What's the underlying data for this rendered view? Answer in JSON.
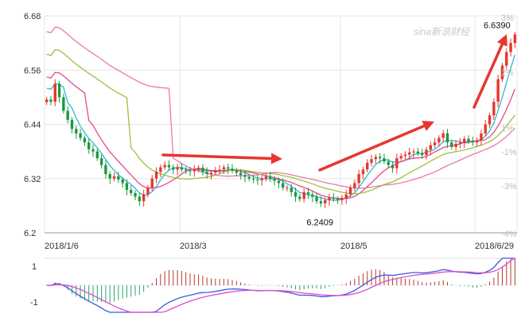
{
  "watermark": "sina新浪财经",
  "chart_data": [
    {
      "type": "candlestick",
      "title": "",
      "xlabel": "",
      "ylabel": "",
      "ylim": [
        6.2,
        6.68
      ],
      "y_ticks": [
        "6.68",
        "6.56",
        "6.44",
        "6.32",
        "6.2"
      ],
      "x_ticks": [
        "2018/1/6",
        "2018/3",
        "2018/5",
        "2018/6/29"
      ],
      "pct_ticks": [
        "3%",
        "2%",
        "1%",
        "-1%",
        "-3%",
        "-4%"
      ],
      "grid": true,
      "annotations": [
        {
          "text": "6.2409",
          "value": 6.2409,
          "kind": "low"
        },
        {
          "text": "6.6390",
          "value": 6.639,
          "kind": "high"
        }
      ],
      "close": [
        6.495,
        6.49,
        6.53,
        6.5,
        6.47,
        6.45,
        6.43,
        6.42,
        6.41,
        6.4,
        6.385,
        6.38,
        6.365,
        6.35,
        6.33,
        6.32,
        6.325,
        6.318,
        6.31,
        6.295,
        6.288,
        6.28,
        6.27,
        6.285,
        6.3,
        6.32,
        6.335,
        6.345,
        6.35,
        6.345,
        6.34,
        6.345,
        6.34,
        6.338,
        6.336,
        6.34,
        6.344,
        6.335,
        6.33,
        6.333,
        6.338,
        6.34,
        6.345,
        6.342,
        6.338,
        6.333,
        6.328,
        6.324,
        6.32,
        6.318,
        6.316,
        6.32,
        6.325,
        6.32,
        6.315,
        6.31,
        6.3,
        6.3,
        6.29,
        6.28,
        6.275,
        6.29,
        6.285,
        6.28,
        6.27,
        6.265,
        6.272,
        6.278,
        6.275,
        6.272,
        6.276,
        6.285,
        6.3,
        6.31,
        6.33,
        6.34,
        6.355,
        6.363,
        6.368,
        6.365,
        6.358,
        6.35,
        6.343,
        6.365,
        6.37,
        6.373,
        6.378,
        6.38,
        6.376,
        6.372,
        6.384,
        6.394,
        6.4,
        6.41,
        6.42,
        6.4,
        6.39,
        6.397,
        6.4,
        6.408,
        6.403,
        6.4,
        6.405,
        6.42,
        6.44,
        6.46,
        6.49,
        6.54,
        6.57,
        6.6,
        6.62,
        6.639
      ],
      "candles_up_color": "#e8352e",
      "candles_down_color": "#1a9b3c",
      "ma": [
        {
          "period": 5,
          "color": "#2eb7d6"
        },
        {
          "period": 10,
          "color": "#e74a8b"
        },
        {
          "period": 20,
          "color": "#9bc23c"
        },
        {
          "period": 30,
          "color": "#e57aa8"
        }
      ],
      "arrow_color": "#e8352e"
    },
    {
      "type": "macd",
      "ylim": [
        -1.2,
        1.2
      ],
      "y_ticks": [
        "1",
        "-1"
      ],
      "dif_color": "#3a5bd9",
      "dea_color": "#e04bd0",
      "hist_up_color": "#b23a2a",
      "hist_down_color": "#2aa36b"
    }
  ]
}
